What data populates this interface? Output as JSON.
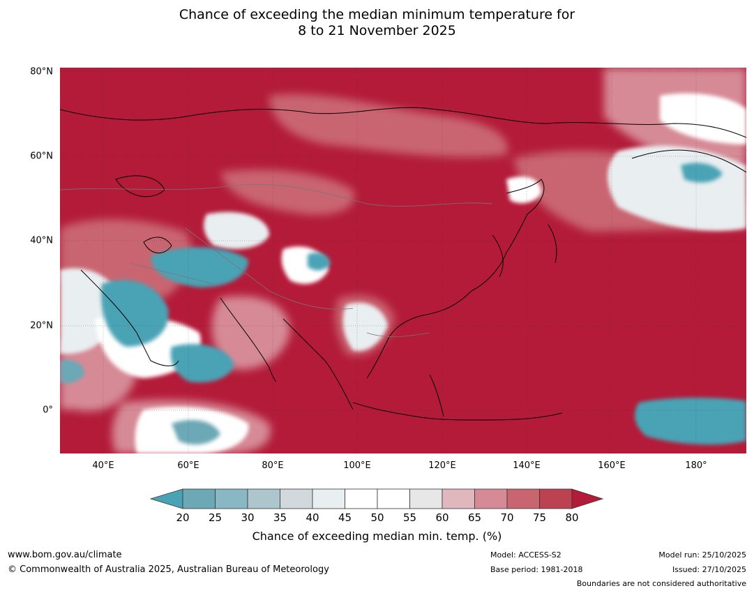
{
  "title": {
    "line1": "Chance of exceeding the median minimum temperature for",
    "line2": "8 to 21 November 2025"
  },
  "map": {
    "latitude_labels": [
      "80°N",
      "60°N",
      "40°N",
      "20°N",
      "0°"
    ],
    "longitude_labels": [
      "40°E",
      "60°E",
      "80°E",
      "100°E",
      "120°E",
      "140°E",
      "160°E",
      "180°"
    ],
    "dominant_color": "#b31b39",
    "below_color": "#4aa3b5",
    "neutral_color": "#ffffff"
  },
  "colorbar": {
    "ticks": [
      "20",
      "25",
      "30",
      "35",
      "40",
      "45",
      "50",
      "55",
      "60",
      "65",
      "70",
      "75",
      "80"
    ],
    "colors": [
      "#6ca8b5",
      "#89b8c4",
      "#adc5cc",
      "#d1d9dc",
      "#e9eef0",
      "#ffffff",
      "#ffffff",
      "#e7e7e7",
      "#e0b7bd",
      "#d68a96",
      "#c9656f",
      "#bc4151"
    ],
    "under_color": "#4aa3b5",
    "over_color": "#b31b39",
    "label": "Chance of exceeding median min. temp. (%)"
  },
  "footer": {
    "website": "www.bom.gov.au/climate",
    "copyright": "© Commonwealth of Australia 2025, Australian Bureau of Meteorology",
    "model": "Model: ACCESS-S2",
    "base_period": "Base period: 1981-2018",
    "model_run": "Model run: 25/10/2025",
    "issued": "Issued: 27/10/2025",
    "disclaimer": "Boundaries are not considered authoritative"
  }
}
